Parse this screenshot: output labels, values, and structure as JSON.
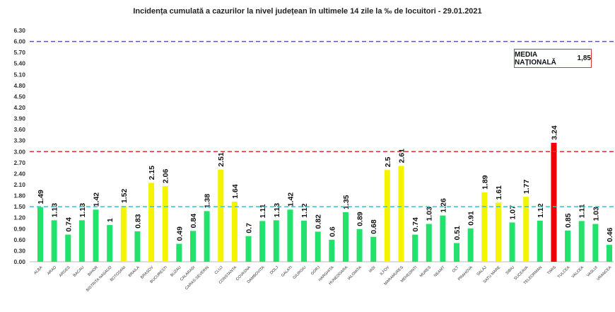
{
  "chart_data": {
    "type": "bar",
    "title": "Incidența cumulată a cazurilor la nivel județean în ultimele 14 zile la ‰ de locuitori - 29.01.2021",
    "xlabel": "",
    "ylabel": "",
    "ylim": [
      0,
      6.3
    ],
    "yticks": [
      "0.00",
      "0.30",
      "0.60",
      "0.90",
      "1.20",
      "1.50",
      "1.80",
      "2.10",
      "2.40",
      "2.70",
      "3.00",
      "3.30",
      "3.60",
      "3.90",
      "4.20",
      "4.50",
      "4.80",
      "5.10",
      "5.40",
      "5.70",
      "6.00",
      "6.30"
    ],
    "grid": false,
    "categories": [
      "ALBA",
      "ARAD",
      "ARGES",
      "BACAU",
      "BIHOR",
      "BISTRITA NASAUD",
      "BOTOSANI",
      "BRAILA",
      "BRASOV",
      "BUCURESTI",
      "BUZAU",
      "CALARASI",
      "CARAS-SEVERIN",
      "CLUJ",
      "CONSTANTA",
      "COVASNA",
      "DAMBOVITA",
      "DOLJ",
      "GALATI",
      "GIURGIU",
      "GORJ",
      "HARGHITA",
      "HUNEDOARA",
      "IALOMITA",
      "IASI",
      "ILFOV",
      "MARAMURES",
      "MEHEDINTI",
      "MURES",
      "NEAMT",
      "OLT",
      "PRAHOVA",
      "SALAJ",
      "SATU MARE",
      "SIBIU",
      "SUCEAVA",
      "TELEORMAN",
      "TIMIS",
      "TULCEA",
      "VALCEA",
      "VASLUI",
      "VRANCEA"
    ],
    "values": [
      1.49,
      1.13,
      0.74,
      1.13,
      1.42,
      1,
      1.52,
      0.83,
      2.15,
      2.06,
      0.49,
      0.84,
      1.38,
      2.51,
      1.64,
      0.7,
      1.11,
      1.13,
      1.42,
      1.12,
      0.82,
      0.6,
      1.35,
      0.89,
      0.68,
      2.5,
      2.61,
      0.74,
      1.03,
      1.26,
      0.51,
      0.91,
      1.89,
      1.61,
      1.07,
      1.77,
      1.12,
      3.24,
      0.85,
      1.11,
      1.03,
      0.46
    ],
    "data_labels": [
      "1.49",
      "1.13",
      "0.74",
      "1.13",
      "1.42",
      "1",
      "1.52",
      "0.83",
      "2.15",
      "2.06",
      "0.49",
      "0.84",
      "1.38",
      "2.51",
      "1.64",
      "0.7",
      "1.11",
      "1.13",
      "1.42",
      "1.12",
      "0.82",
      "0.6",
      "1.35",
      "0.89",
      "0.68",
      "2.5",
      "2.61",
      "0.74",
      "1.03",
      "1.26",
      "0.51",
      "0.91",
      "1.89",
      "1.61",
      "1.07",
      "1.77",
      "1.12",
      "3.24",
      "0.85",
      "1.11",
      "1.03",
      "0.46"
    ],
    "reference_lines": [
      {
        "value": 6.0,
        "color": "#6a4fb0"
      },
      {
        "value": 3.0,
        "color": "#e03030"
      },
      {
        "value": 1.5,
        "color": "#33c3d6"
      }
    ],
    "colors": {
      "low": "#22e26c",
      "medium": "#f4f400",
      "high": "#ee0000"
    },
    "thresholds": [
      1.5,
      3.0
    ],
    "annotation": {
      "label": "MEDIA NAȚIONALĂ",
      "value": "1,85"
    }
  }
}
